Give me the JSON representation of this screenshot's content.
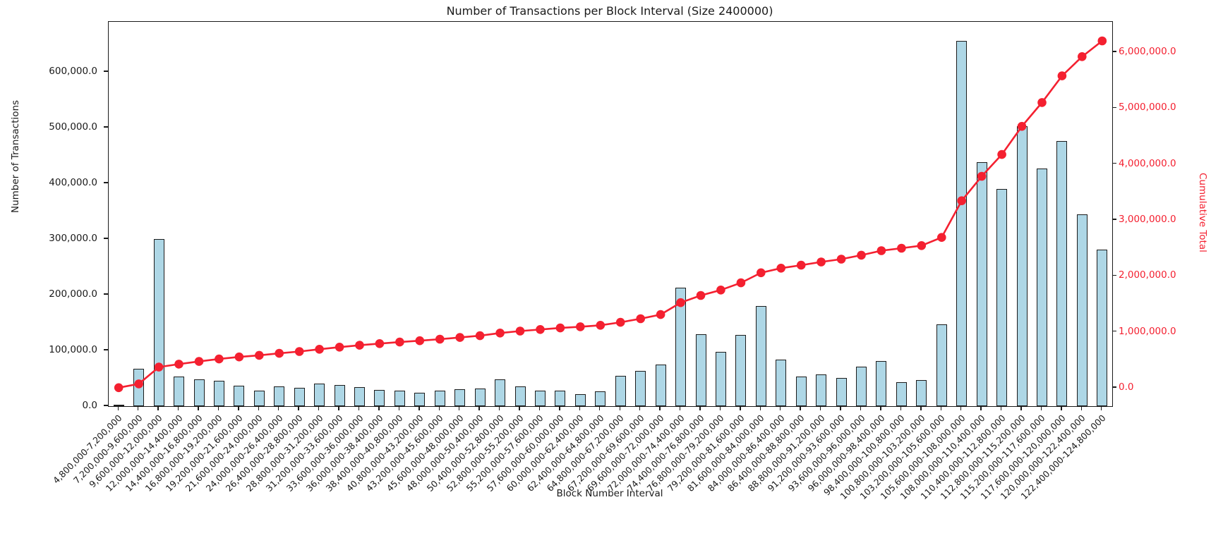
{
  "title": "Number of Transactions per Block Interval (Size 2400000)",
  "colors": {
    "bar_fill": "#aed7e6",
    "bar_edge": "#1c1c1c",
    "line": "#f42030",
    "axis": "#1a1a1a",
    "text": "#1a1a1a"
  },
  "chart_data": {
    "type": "bar",
    "subtype": "bar-with-cumulative-line",
    "title": "Number of Transactions per Block Interval (Size 2400000)",
    "xlabel": "Block Number Interval",
    "ylabel_left": "Number of Transactions",
    "ylabel_right": "Cumulative Total",
    "grid": false,
    "legend": "none",
    "categories": [
      "4,800,000-7,200,000",
      "7,200,000-9,600,000",
      "9,600,000-12,000,000",
      "12,000,000-14,400,000",
      "14,400,000-16,800,000",
      "16,800,000-19,200,000",
      "19,200,000-21,600,000",
      "21,600,000-24,000,000",
      "24,000,000-26,400,000",
      "26,400,000-28,800,000",
      "28,800,000-31,200,000",
      "31,200,000-33,600,000",
      "33,600,000-36,000,000",
      "36,000,000-38,400,000",
      "38,400,000-40,800,000",
      "40,800,000-43,200,000",
      "43,200,000-45,600,000",
      "45,600,000-48,000,000",
      "48,000,000-50,400,000",
      "50,400,000-52,800,000",
      "52,800,000-55,200,000",
      "55,200,000-57,600,000",
      "57,600,000-60,000,000",
      "60,000,000-62,400,000",
      "62,400,000-64,800,000",
      "64,800,000-67,200,000",
      "67,200,000-69,600,000",
      "69,600,000-72,000,000",
      "72,000,000-74,400,000",
      "74,400,000-76,800,000",
      "76,800,000-79,200,000",
      "79,200,000-81,600,000",
      "81,600,000-84,000,000",
      "84,000,000-86,400,000",
      "86,400,000-88,800,000",
      "88,800,000-91,200,000",
      "91,200,000-93,600,000",
      "93,600,000-96,000,000",
      "96,000,000-98,400,000",
      "98,400,000-100,800,000",
      "100,800,000-103,200,000",
      "103,200,000-105,600,000",
      "105,600,000-108,000,000",
      "108,000,000-110,400,000",
      "110,400,000-112,800,000",
      "112,800,000-115,200,000",
      "115,200,000-117,600,000",
      "117,600,000-120,000,000",
      "120,000,000-122,400,000",
      "122,400,000-124,800,000"
    ],
    "series": [
      {
        "name": "Number of Transactions",
        "type": "bar",
        "axis": "left",
        "values": [
          3000,
          67500,
          300000,
          52800,
          47700,
          45200,
          36700,
          28200,
          35800,
          32500,
          40100,
          38000,
          33800,
          29500,
          27500,
          24000,
          27500,
          30800,
          31600,
          47700,
          35800,
          27500,
          27500,
          21100,
          26200,
          54000,
          63300,
          75100,
          212600,
          129100,
          97500,
          127900,
          179800,
          83200,
          52800,
          57000,
          50600,
          70900,
          81400,
          43400,
          46400,
          146500,
          655800,
          438000,
          389900,
          502600,
          426600,
          476000,
          344300,
          281000
        ]
      },
      {
        "name": "Cumulative Total",
        "type": "line",
        "axis": "right",
        "values": [
          3000,
          70500,
          370500,
          423300,
          471000,
          516200,
          552900,
          581100,
          616900,
          649400,
          689500,
          727500,
          761300,
          790800,
          818300,
          842300,
          869800,
          900600,
          932200,
          979900,
          1015700,
          1043200,
          1070700,
          1091800,
          1118000,
          1172000,
          1235300,
          1310400,
          1523000,
          1652100,
          1749600,
          1877500,
          2057300,
          2140500,
          2193300,
          2250300,
          2300900,
          2371800,
          2453200,
          2496600,
          2543000,
          2689500,
          3345300,
          3783300,
          4173200,
          4675800,
          5102400,
          5578400,
          5922700,
          6203700
        ]
      }
    ],
    "left_ylim": [
      0,
      690000
    ],
    "right_ylim": [
      -327900,
      6544600
    ],
    "left_ticks": [
      0,
      100000,
      200000,
      300000,
      400000,
      500000,
      600000
    ],
    "left_tick_labels": [
      "0.0",
      "100,000.0",
      "200,000.0",
      "300,000.0",
      "400,000.0",
      "500,000.0",
      "600,000.0"
    ],
    "right_ticks": [
      0,
      1000000,
      2000000,
      3000000,
      4000000,
      5000000,
      6000000
    ],
    "right_tick_labels": [
      "0.0",
      "1,000,000.0",
      "2,000,000.0",
      "3,000,000.0",
      "4,000,000.0",
      "5,000,000.0",
      "6,000,000.0"
    ]
  }
}
